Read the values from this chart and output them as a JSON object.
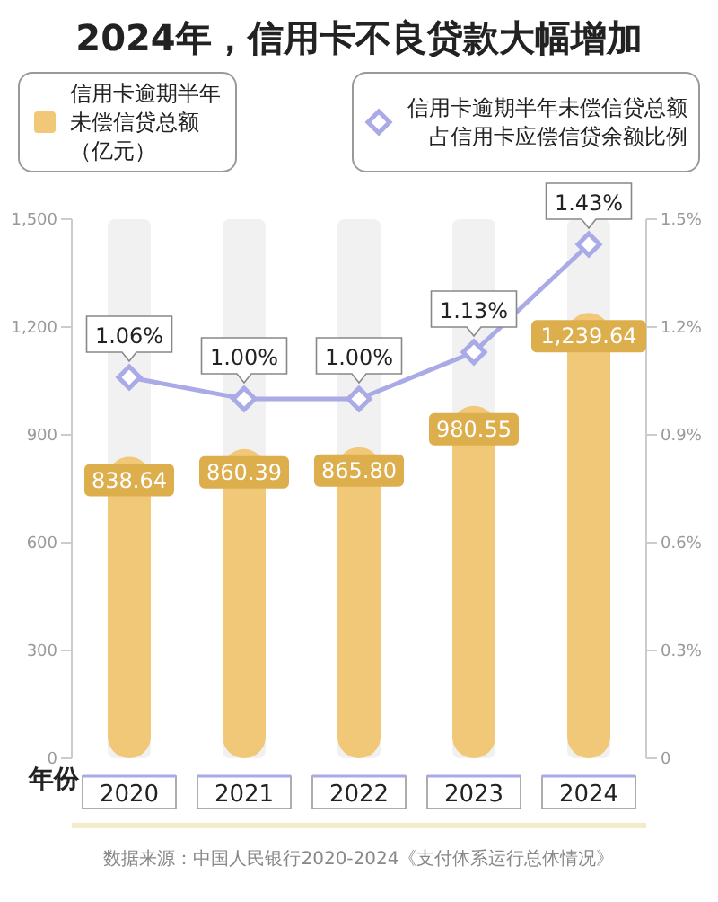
{
  "chart_data": {
    "type": "bar",
    "title": "2024年，信用卡不良贷款大幅增加",
    "xlabel": "年份",
    "categories": [
      "2020",
      "2021",
      "2022",
      "2023",
      "2024"
    ],
    "series": [
      {
        "name": "信用卡逾期半年未偿信贷总额（亿元）",
        "color": "#f0c878",
        "values": [
          838.64,
          860.39,
          865.8,
          980.55,
          1239.64
        ],
        "value_labels": [
          "838.64",
          "860.39",
          "865.80",
          "980.55",
          "1,239.64"
        ]
      },
      {
        "name": "信用卡逾期半年未偿信贷总额占信用卡应偿信贷余额比例",
        "type": "line",
        "axis": "y2",
        "color": "#a9aae6",
        "marker": "diamond",
        "values": [
          1.06,
          1.0,
          1.0,
          1.13,
          1.43
        ],
        "value_labels": [
          "1.06%",
          "1.00%",
          "1.00%",
          "1.13%",
          "1.43%"
        ]
      }
    ],
    "ylim": [
      0,
      1500
    ],
    "yticks": [
      0,
      300,
      600,
      900,
      {
        "value": 1200,
        "label": "1,200"
      },
      {
        "value": 1500,
        "label": "1,500"
      }
    ],
    "y2lim": [
      0,
      1.5
    ],
    "y2ticks": [
      0,
      {
        "value": 0.3,
        "label": "0.3%"
      },
      {
        "value": 0.6,
        "label": "0.6%"
      },
      {
        "value": 0.9,
        "label": "0.9%"
      },
      {
        "value": 1.2,
        "label": "1.2%"
      },
      {
        "value": 1.5,
        "label": "1.5%"
      }
    ],
    "legend": "top",
    "annotations": [
      "数据来源：中国人民银行2020-2024《支付体系运行总体情况》"
    ]
  }
}
